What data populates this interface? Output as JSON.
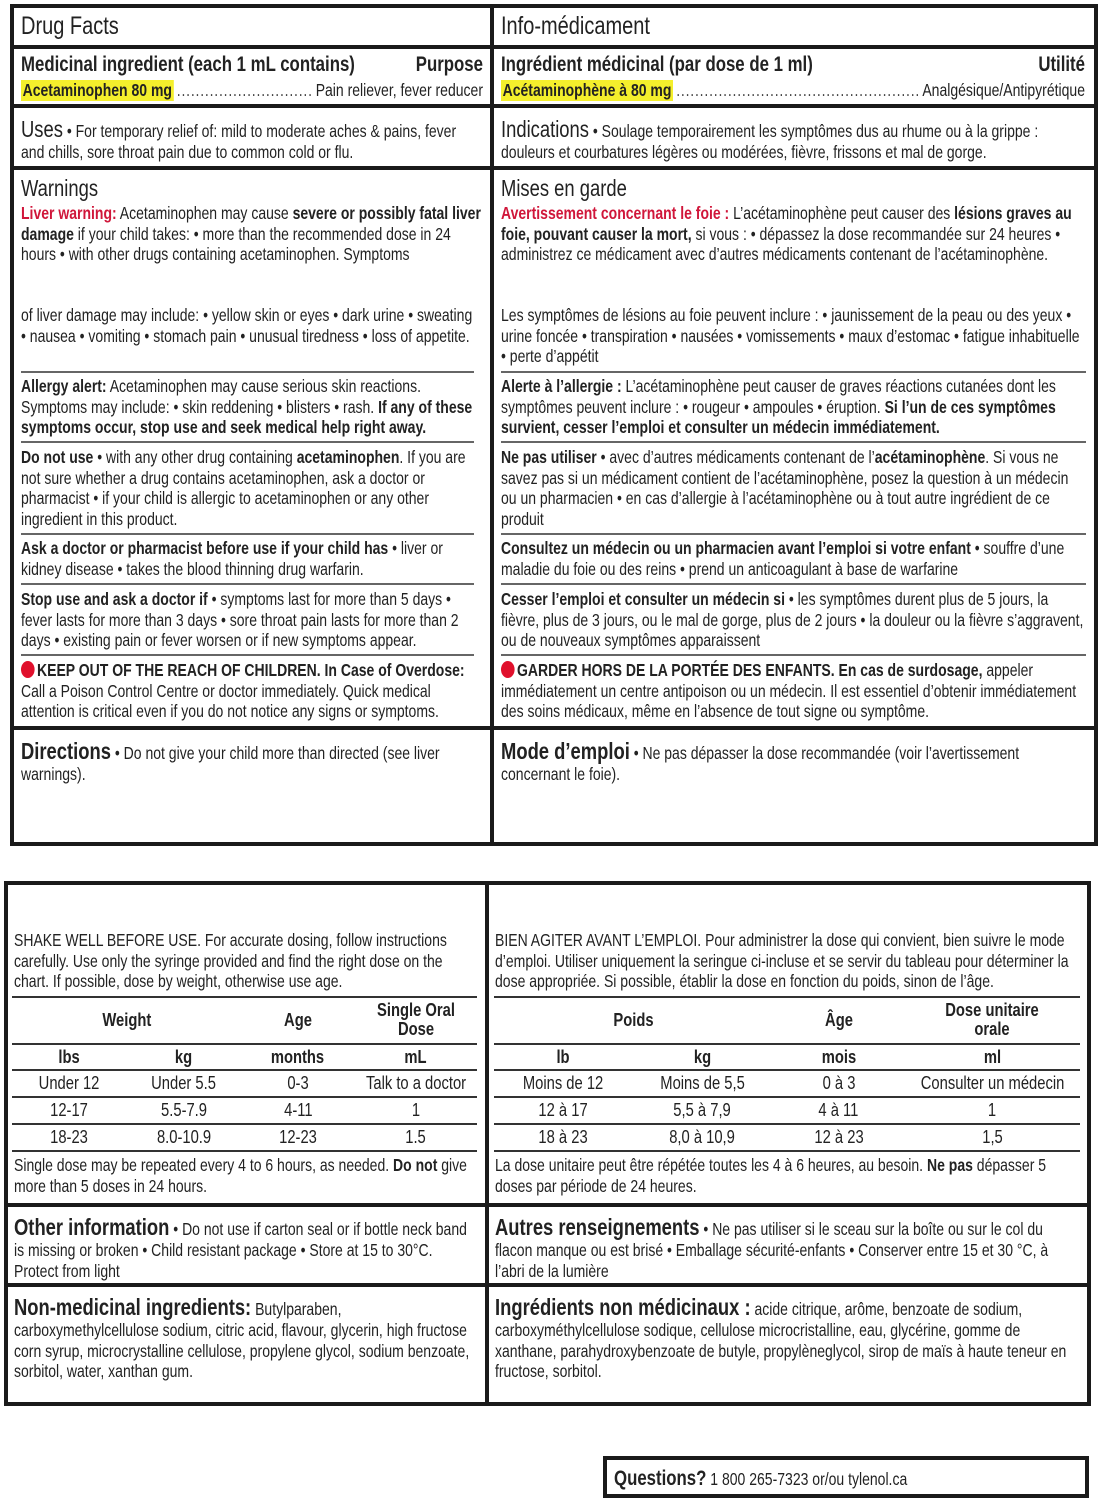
{
  "colors": {
    "highlight": "#f4ef2c",
    "warning_red": "#d0163a",
    "stop_dot": "#e0102c"
  },
  "en": {
    "title": "Drug Facts",
    "ingredient_header": "Medicinal ingredient (each 1 mL contains)",
    "purpose_header": "Purpose",
    "ingredient": "Acetaminophen 80 mg",
    "purpose": "Pain reliever, fever reducer",
    "uses": [
      {
        "t": "Uses",
        "st": "hd"
      },
      {
        "t": "  • For temporary relief of: mild to moderate aches & pains, fever and chills, sore throat pain due to common cold or flu.",
        "st": ""
      }
    ],
    "warnings_title": "Warnings",
    "liver": [
      {
        "t": "Liver warning:",
        "st": "r"
      },
      {
        "t": " Acetaminophen may cause ",
        "st": ""
      },
      {
        "t": "severe or possibly fatal liver damage",
        "st": "b"
      },
      {
        "t": " if your child takes: • more than the recommended dose in 24 hours  • with other drugs containing acetaminophen. Symptoms",
        "st": ""
      }
    ],
    "liver2": [
      {
        "t": "of liver damage may include: • yellow skin or eyes  • dark urine  • sweating  • nausea  • vomiting  • stomach pain  • unusual tiredness  • loss of appetite.",
        "st": ""
      }
    ],
    "allergy": [
      {
        "t": "Allergy alert:",
        "st": "b"
      },
      {
        "t": " Acetaminophen may cause serious skin reactions. Symptoms may include: • skin reddening  • blisters  • rash. ",
        "st": ""
      },
      {
        "t": "If any of these symptoms occur, stop use and seek medical help right away.",
        "st": "b"
      }
    ],
    "do_not_use": [
      {
        "t": "Do not use",
        "st": "b"
      },
      {
        "t": "  • with any other drug containing ",
        "st": ""
      },
      {
        "t": "acetaminophen",
        "st": "b"
      },
      {
        "t": ". If you are not sure whether a drug contains acetaminophen, ask a doctor or pharmacist  • if your child is allergic to acetaminophen or any other ingredient in this product.",
        "st": ""
      }
    ],
    "ask_doctor": [
      {
        "t": "Ask a doctor or pharmacist before use if your child has",
        "st": "b"
      },
      {
        "t": "  • liver or kidney disease  • takes the blood thinning drug warfarin.",
        "st": ""
      }
    ],
    "stop_use": [
      {
        "t": "Stop use and ask a doctor if",
        "st": "b"
      },
      {
        "t": "  • symptoms last for more than 5 days  • fever lasts for more than 3 days  • sore throat pain lasts for more than 2 days  • existing pain or fever worsen or if new symptoms appear.",
        "st": ""
      }
    ],
    "keep_out": [
      {
        "t": "KEEP OUT OF THE REACH OF CHILDREN. In Case of Overdose:",
        "st": "b"
      },
      {
        "t": " Call a Poison Control Centre or doctor immediately. Quick medical attention is critical even if you do not notice any signs or symptoms.",
        "st": ""
      }
    ],
    "directions": [
      {
        "t": "Directions",
        "st": "hd b"
      },
      {
        "t": "  • Do not give your child more than directed (see liver warnings).",
        "st": ""
      }
    ],
    "dosing_intro": "SHAKE WELL BEFORE USE. For accurate dosing, follow instructions carefully. Use only the syringe provided and find the right dose on the chart. If possible, dose by weight, otherwise use age.",
    "table": {
      "group_headers": [
        "Weight",
        "Age",
        "Single Oral Dose"
      ],
      "unit_headers": [
        "lbs",
        "kg",
        "months",
        "mL"
      ],
      "rows": [
        [
          "Under 12",
          "Under 5.5",
          "0-3",
          "Talk to a doctor"
        ],
        [
          "12-17",
          "5.5-7.9",
          "4-11",
          "1"
        ],
        [
          "18-23",
          "8.0-10.9",
          "12-23",
          "1.5"
        ]
      ]
    },
    "dosing_note": [
      {
        "t": "Single dose may be repeated every 4 to 6 hours, as needed. ",
        "st": ""
      },
      {
        "t": "Do not",
        "st": "b"
      },
      {
        "t": " give more than 5 doses in 24 hours.",
        "st": ""
      }
    ],
    "other_info": [
      {
        "t": "Other information",
        "st": "hd b"
      },
      {
        "t": "  • Do not use if carton seal or if bottle neck band is missing or broken  • Child resistant package  • Store at 15 to 30°C. Protect from light",
        "st": ""
      }
    ],
    "non_medicinal": [
      {
        "t": "Non-medicinal ingredients:",
        "st": "hd b"
      },
      {
        "t": " Butylparaben, carboxymethylcellulose sodium, citric acid, flavour, glycerin, high fructose corn syrup, microcrystalline cellulose, propylene glycol, sodium benzoate, sorbitol, water, xanthan gum.",
        "st": ""
      }
    ]
  },
  "fr": {
    "title": "Info-médicament",
    "ingredient_header": "Ingrédient médicinal (par dose de 1 ml)",
    "purpose_header": "Utilité",
    "ingredient": "Acétaminophène à 80 mg",
    "purpose": "Analgésique/Antipyrétique",
    "uses": [
      {
        "t": "Indications",
        "st": "hd"
      },
      {
        "t": "  • Soulage temporairement les symptômes dus au rhume ou à la grippe : douleurs et courbatures légères ou modérées, fièvre, frissons et mal de gorge.",
        "st": ""
      }
    ],
    "warnings_title": "Mises en garde",
    "liver": [
      {
        "t": "Avertissement concernant le foie :",
        "st": "r"
      },
      {
        "t": " L’acétaminophène peut causer des ",
        "st": ""
      },
      {
        "t": "lésions graves au foie, pouvant causer la mort,",
        "st": "b"
      },
      {
        "t": " si vous : • dépassez la dose recommandée sur 24 heures • administrez ce médicament avec d’autres médicaments contenant de l’acétaminophène.",
        "st": ""
      }
    ],
    "liver2": [
      {
        "t": "Les symptômes de lésions au foie peuvent inclure : • jaunissement de la peau ou des yeux  • urine foncée  • transpiration  • nausées  • vomissements  • maux d’estomac  • fatigue inhabituelle  • perte d’appétit",
        "st": ""
      }
    ],
    "allergy": [
      {
        "t": "Alerte à l’allergie :",
        "st": "b"
      },
      {
        "t": " L’acétaminophène peut causer de graves réactions cutanées dont les symptômes peuvent inclure : • rougeur  • ampoules  • éruption. ",
        "st": ""
      },
      {
        "t": "Si l’un de ces symptômes survient, cesser l’emploi et consulter un médecin immédiatement.",
        "st": "b"
      }
    ],
    "do_not_use": [
      {
        "t": "Ne pas utiliser",
        "st": "b"
      },
      {
        "t": "  • avec d’autres médicaments contenant de l’",
        "st": ""
      },
      {
        "t": "acétaminophène",
        "st": "b"
      },
      {
        "t": ". Si vous ne savez pas si un médicament contient de l’acétaminophène, posez la question à un médecin ou un pharmacien  • en cas d’allergie à l’acétaminophène ou à tout autre ingrédient de ce produit",
        "st": ""
      }
    ],
    "ask_doctor": [
      {
        "t": "Consultez un médecin ou un pharmacien avant l’emploi si votre enfant",
        "st": "b"
      },
      {
        "t": "  • souffre d’une maladie du foie ou des reins  • prend un anticoagulant à base de warfarine",
        "st": ""
      }
    ],
    "stop_use": [
      {
        "t": "Cesser l’emploi et consulter un médecin si",
        "st": "b"
      },
      {
        "t": "  • les symptômes durent plus de 5 jours, la fièvre, plus de 3 jours, ou le mal de gorge, plus de 2 jours  • la douleur ou la fièvre s’aggravent, ou de nouveaux symptômes apparaissent",
        "st": ""
      }
    ],
    "keep_out": [
      {
        "t": "GARDER HORS DE LA PORTÉE DES ENFANTS. En cas de surdosage,",
        "st": "b"
      },
      {
        "t": " appeler immédiatement un centre antipoison ou un médecin. Il est essentiel d’obtenir immédiatement des soins médicaux, même en l’absence de tout signe ou symptôme.",
        "st": ""
      }
    ],
    "directions": [
      {
        "t": "Mode d’emploi",
        "st": "hd b"
      },
      {
        "t": "  • Ne pas dépasser la dose recommandée (voir l’avertissement concernant le foie).",
        "st": ""
      }
    ],
    "dosing_intro": "BIEN AGITER AVANT L’EMPLOI. Pour administrer la dose qui convient, bien suivre le mode d’emploi. Utiliser uniquement la seringue ci-incluse et se servir du tableau pour déterminer la dose appropriée. Si possible, établir la dose en fonction du poids, sinon de l’âge.",
    "table": {
      "group_headers": [
        "Poids",
        "Âge",
        "Dose unitaire orale"
      ],
      "unit_headers": [
        "lb",
        "kg",
        "mois",
        "ml"
      ],
      "rows": [
        [
          "Moins de 12",
          "Moins de 5,5",
          "0 à 3",
          "Consulter un médecin"
        ],
        [
          "12 à 17",
          "5,5 à 7,9",
          "4 à 11",
          "1"
        ],
        [
          "18 à 23",
          "8,0 à 10,9",
          "12 à 23",
          "1,5"
        ]
      ]
    },
    "dosing_note": [
      {
        "t": "La dose unitaire peut être répétée toutes les 4 à 6 heures, au besoin. ",
        "st": ""
      },
      {
        "t": "Ne pas",
        "st": "b"
      },
      {
        "t": " dépasser 5 doses par période de 24 heures.",
        "st": ""
      }
    ],
    "other_info": [
      {
        "t": "Autres renseignements",
        "st": "hd b"
      },
      {
        "t": "  • Ne pas utiliser si le sceau sur la boîte ou sur le col du flacon manque ou est brisé  • Emballage sécurité-enfants  • Conserver entre 15 et 30 °C, à l’abri de la lumière",
        "st": ""
      }
    ],
    "non_medicinal": [
      {
        "t": "Ingrédients non médicinaux :",
        "st": "hd b"
      },
      {
        "t": " acide citrique, arôme, benzoate de sodium, carboxyméthylcellulose sodique, cellulose microcristalline, eau, glycérine, gomme de xanthane, parahydroxybenzoate de butyle, propylèneglycol, sirop de maïs à haute teneur en fructose, sorbitol.",
        "st": ""
      }
    ]
  },
  "questions": {
    "label": "Questions?",
    "text": " 1 800 265-7323 or/ou tylenol.ca"
  }
}
